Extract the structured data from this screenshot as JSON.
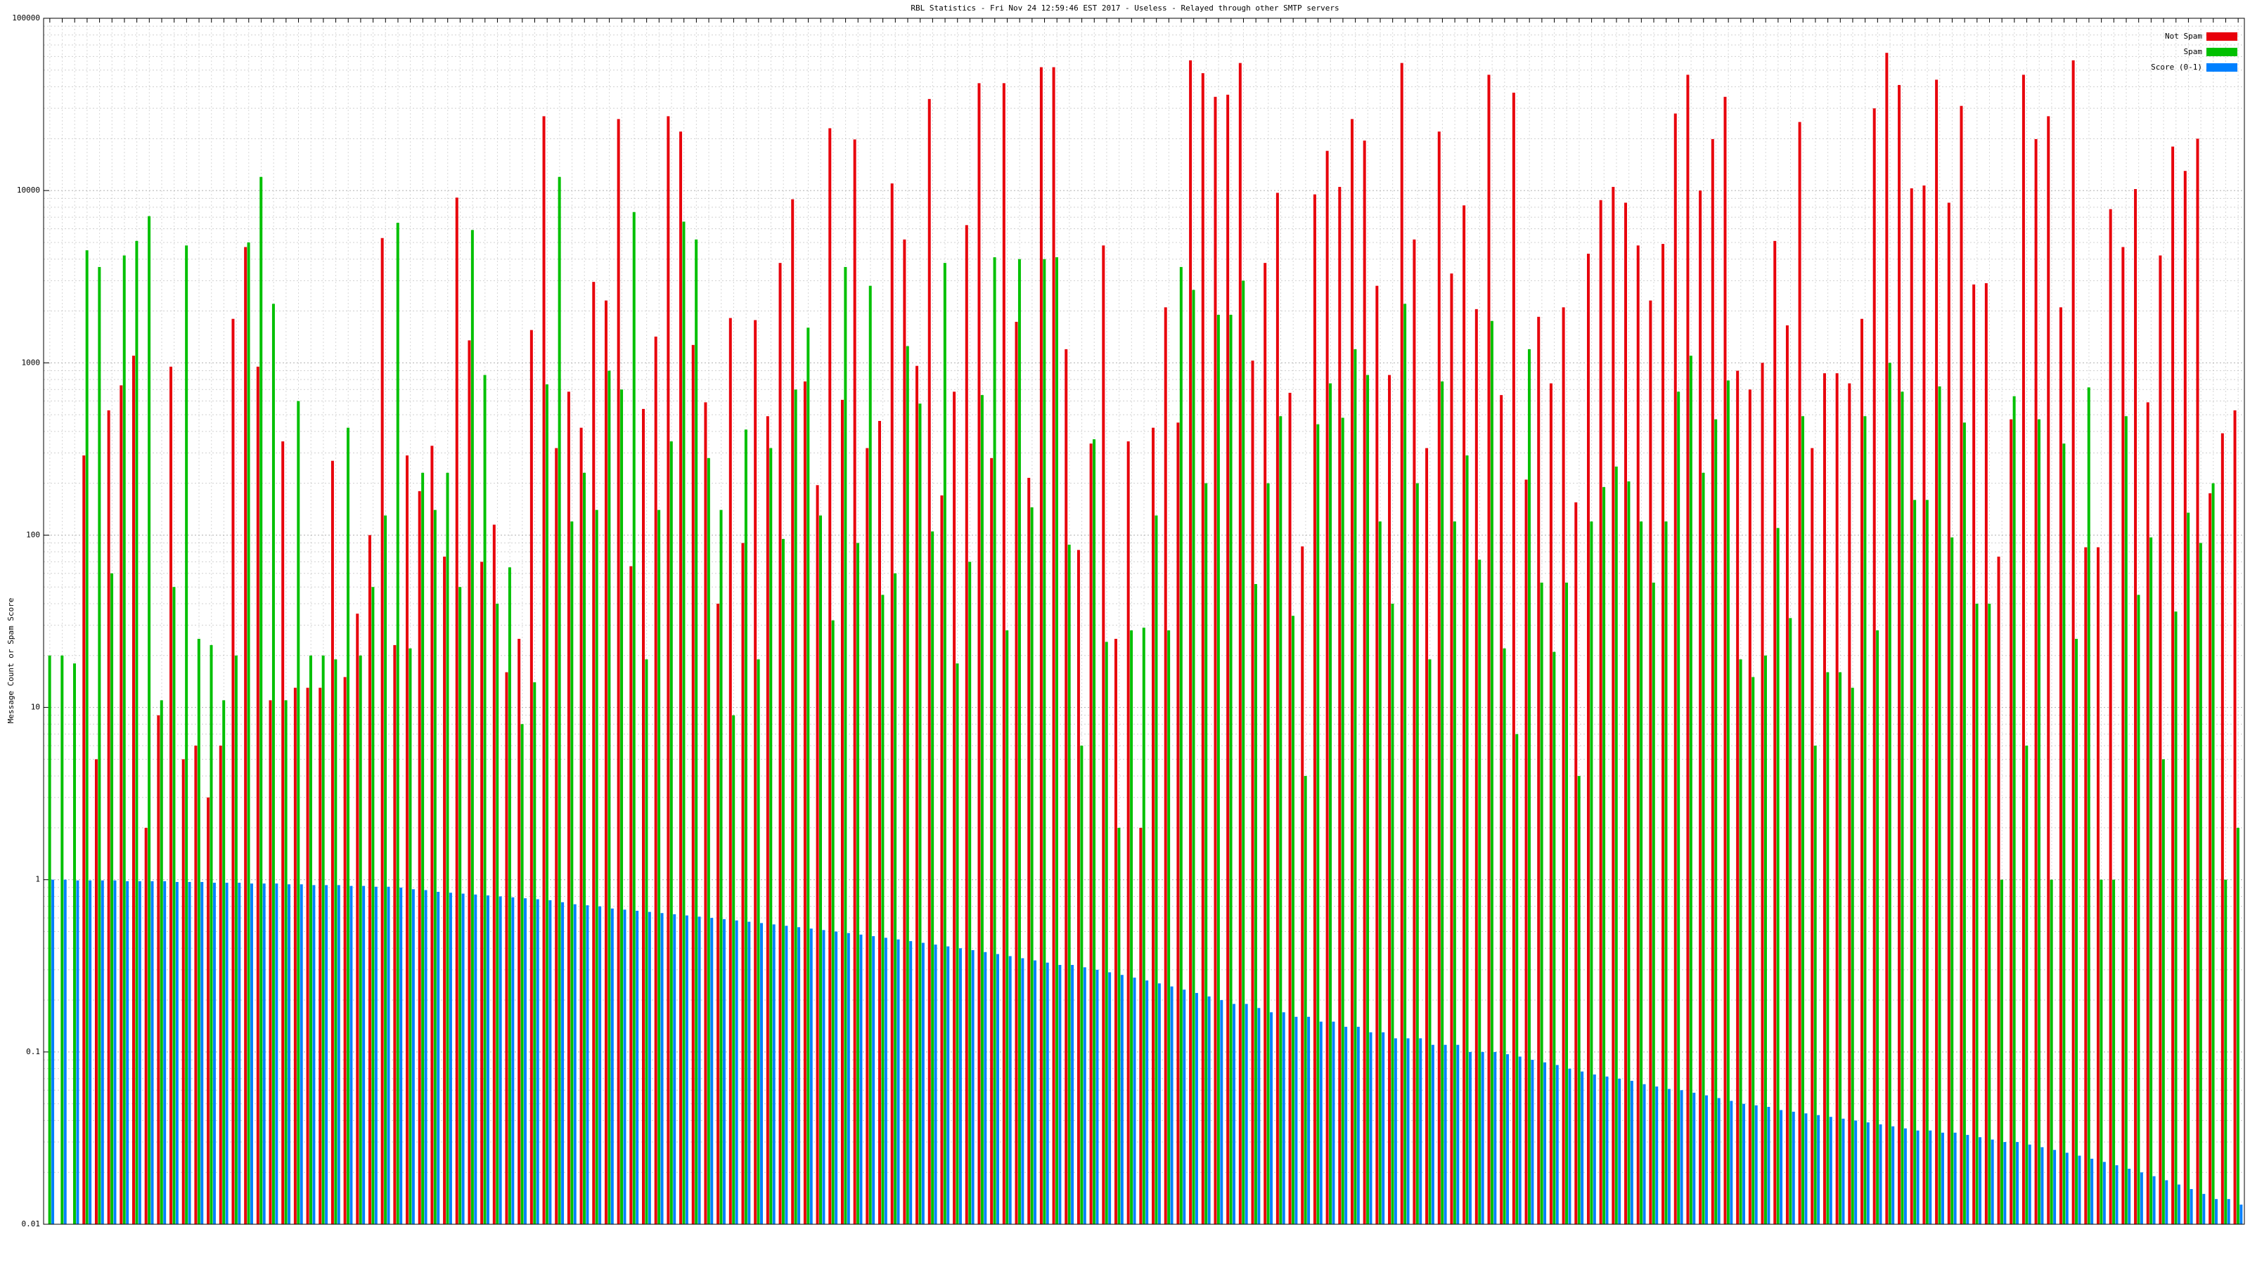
{
  "chart_data": {
    "type": "bar",
    "title": "RBL Statistics - Fri Nov 24 12:59:46 EST 2017 - Useless - Relayed through other SMTP servers",
    "y_label": "Message Count or Spam Score",
    "log_scale": true,
    "grid": true,
    "legend": "top-right",
    "ylim": [
      0.01,
      100000
    ],
    "yticks": [
      0.01,
      0.1,
      1,
      10,
      100,
      1000,
      10000,
      100000
    ],
    "series": [
      {
        "name": "Not Spam",
        "color": "#e8000b",
        "values": [
          null,
          null,
          null,
          290,
          5,
          530,
          740,
          1100,
          2,
          9,
          950,
          5,
          6,
          3,
          6,
          1800,
          4700,
          950,
          11,
          350,
          13,
          13,
          13,
          270,
          15,
          35,
          100,
          5300,
          23,
          290,
          180,
          330,
          75,
          9100,
          1350,
          70,
          115,
          16,
          25,
          1550,
          27000,
          320,
          680,
          420,
          2950,
          2300,
          26000,
          66,
          540,
          1420,
          27000,
          22000,
          1270,
          590,
          40,
          1820,
          90,
          1770,
          490,
          3800,
          8900,
          780,
          195,
          23000,
          610,
          19800,
          320,
          460,
          11000,
          5200,
          960,
          34000,
          170,
          680,
          6300,
          42000,
          280,
          42000,
          1730,
          215,
          52000,
          52000,
          1200,
          82,
          340,
          4800,
          25,
          350,
          2,
          420,
          2100,
          450,
          57000,
          48000,
          35000,
          36000,
          55000,
          1030,
          3800,
          9700,
          670,
          86,
          9500,
          17000,
          10500,
          26000,
          19500,
          2800,
          850,
          55000,
          5200,
          320,
          22000,
          3300,
          8200,
          2050,
          47000,
          650,
          37000,
          210,
          1850,
          760,
          2100,
          155,
          4300,
          8800,
          10500,
          8500,
          4800,
          2300,
          4900,
          28000,
          47000,
          10000,
          19900,
          35000,
          900,
          700,
          1000,
          5100,
          1650,
          25000,
          320,
          870,
          870,
          760,
          1800,
          30000,
          63000,
          41000,
          10300,
          10700,
          44000,
          8500,
          31000,
          2850,
          2900,
          75,
          470,
          47000,
          19900,
          27000,
          2100,
          57000,
          85,
          85,
          7800,
          4700,
          10200,
          590,
          4200,
          18000,
          13000,
          20000,
          175,
          390,
          530
        ]
      },
      {
        "name": "Spam",
        "color": "#00c000",
        "values": [
          20,
          20,
          18,
          4500,
          3600,
          60,
          4200,
          5100,
          7100,
          11,
          50,
          4800,
          25,
          23,
          11,
          20,
          5000,
          12000,
          2200,
          11,
          600,
          20,
          20,
          19,
          420,
          20,
          50,
          130,
          6500,
          22,
          230,
          140,
          230,
          50,
          5900,
          850,
          40,
          65,
          8,
          14,
          750,
          12000,
          120,
          230,
          140,
          900,
          700,
          7500,
          19,
          140,
          350,
          6600,
          5200,
          280,
          140,
          9,
          410,
          19,
          320,
          95,
          700,
          1600,
          130,
          32,
          3600,
          90,
          2800,
          45,
          60,
          1250,
          580,
          105,
          3800,
          18,
          70,
          650,
          4100,
          28,
          4000,
          145,
          4000,
          4100,
          88,
          6,
          360,
          24,
          2,
          28,
          29,
          130,
          28,
          3600,
          2650,
          200,
          1900,
          1900,
          3000,
          52,
          200,
          490,
          34,
          4,
          440,
          760,
          480,
          1200,
          850,
          120,
          40,
          2200,
          200,
          19,
          780,
          120,
          290,
          72,
          1750,
          22,
          7,
          1200,
          53,
          21,
          53,
          4,
          120,
          190,
          250,
          205,
          120,
          53,
          120,
          680,
          1100,
          230,
          470,
          790,
          19,
          15,
          20,
          110,
          33,
          490,
          6,
          16,
          16,
          13,
          490,
          28,
          1000,
          680,
          160,
          160,
          730,
          97,
          450,
          40,
          40,
          1,
          640,
          6,
          470,
          1,
          340,
          25,
          720,
          1,
          1,
          490,
          45,
          97,
          5,
          36,
          135,
          90,
          200,
          1,
          2
        ]
      },
      {
        "name": "Score (0-1)",
        "color": "#0080ff",
        "values": [
          1,
          1,
          0.99,
          0.99,
          0.99,
          0.99,
          0.98,
          0.98,
          0.98,
          0.98,
          0.97,
          0.97,
          0.97,
          0.96,
          0.96,
          0.96,
          0.95,
          0.95,
          0.95,
          0.94,
          0.94,
          0.93,
          0.93,
          0.93,
          0.92,
          0.92,
          0.91,
          0.91,
          0.9,
          0.88,
          0.87,
          0.85,
          0.84,
          0.83,
          0.82,
          0.81,
          0.8,
          0.79,
          0.78,
          0.77,
          0.76,
          0.74,
          0.72,
          0.71,
          0.7,
          0.68,
          0.67,
          0.66,
          0.65,
          0.64,
          0.63,
          0.62,
          0.61,
          0.6,
          0.59,
          0.58,
          0.57,
          0.56,
          0.55,
          0.54,
          0.53,
          0.52,
          0.51,
          0.5,
          0.49,
          0.48,
          0.47,
          0.46,
          0.45,
          0.44,
          0.43,
          0.42,
          0.41,
          0.4,
          0.39,
          0.38,
          0.37,
          0.36,
          0.35,
          0.34,
          0.33,
          0.32,
          0.32,
          0.31,
          0.3,
          0.29,
          0.28,
          0.27,
          0.26,
          0.25,
          0.24,
          0.23,
          0.22,
          0.21,
          0.2,
          0.19,
          0.19,
          0.18,
          0.17,
          0.17,
          0.16,
          0.16,
          0.15,
          0.15,
          0.14,
          0.14,
          0.13,
          0.13,
          0.12,
          0.12,
          0.12,
          0.11,
          0.11,
          0.11,
          0.1,
          0.1,
          0.1,
          0.097,
          0.094,
          0.09,
          0.087,
          0.084,
          0.08,
          0.077,
          0.074,
          0.072,
          0.07,
          0.068,
          0.065,
          0.063,
          0.061,
          0.06,
          0.058,
          0.056,
          0.054,
          0.052,
          0.05,
          0.049,
          0.048,
          0.046,
          0.045,
          0.044,
          0.043,
          0.042,
          0.041,
          0.04,
          0.039,
          0.038,
          0.037,
          0.036,
          0.035,
          0.035,
          0.034,
          0.034,
          0.033,
          0.032,
          0.031,
          0.03,
          0.03,
          0.029,
          0.028,
          0.027,
          0.026,
          0.025,
          0.024,
          0.023,
          0.022,
          0.021,
          0.02,
          0.019,
          0.018,
          0.017,
          0.016,
          0.015,
          0.014,
          0.014,
          0.013
        ]
      }
    ]
  }
}
